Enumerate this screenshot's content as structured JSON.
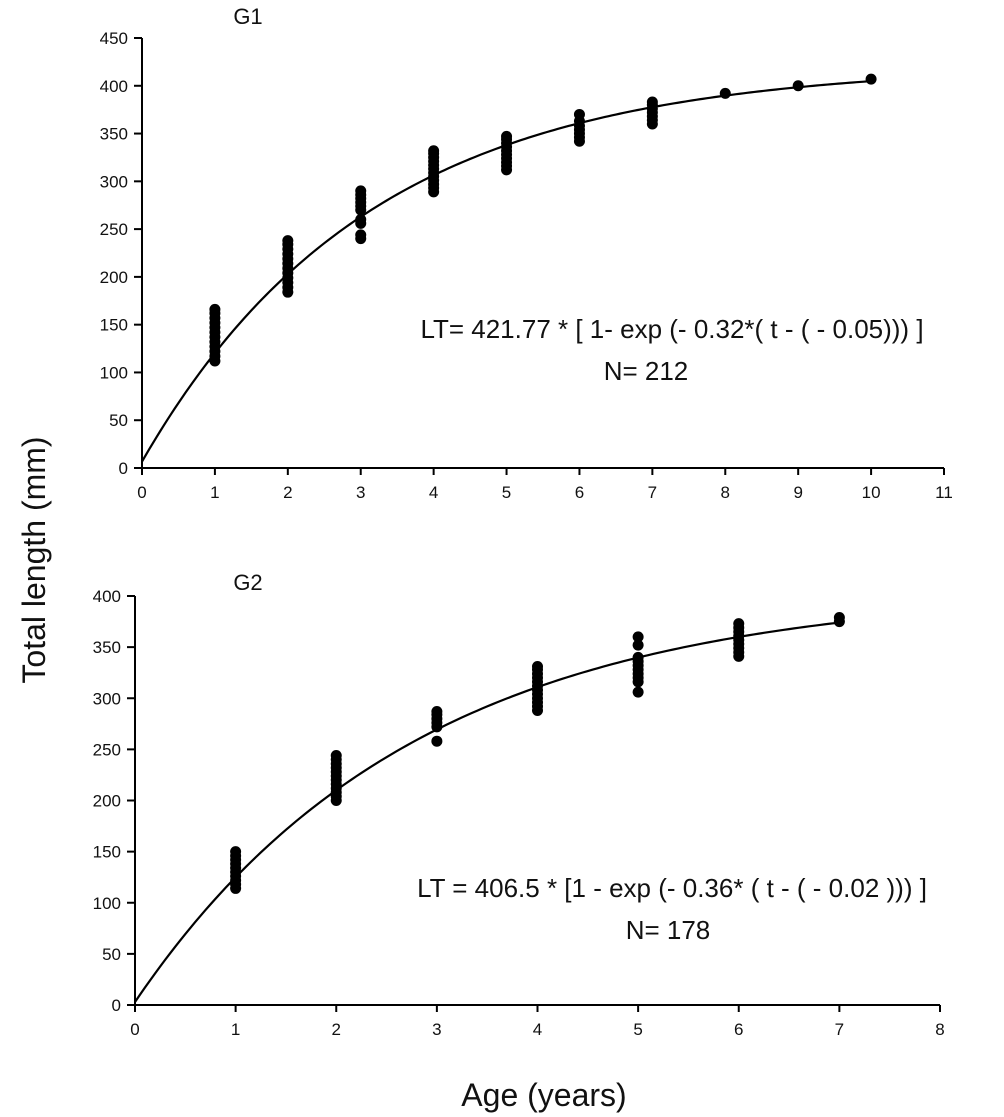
{
  "chart_data": {
    "shared": {
      "ylabel": "Total length (mm)",
      "xlabel": "Age (years)",
      "colors": {
        "ink": "#000000",
        "background": "#ffffff"
      }
    },
    "panels": [
      {
        "type": "scatter",
        "title": "G1",
        "xlim": [
          0,
          11
        ],
        "ylim": [
          0,
          450
        ],
        "xticks": [
          "0",
          "1",
          "2",
          "3",
          "4",
          "5",
          "6",
          "7",
          "8",
          "9",
          "10",
          "11"
        ],
        "yticks": [
          "0",
          "50",
          "100",
          "150",
          "200",
          "250",
          "300",
          "350",
          "400",
          "450"
        ],
        "equation": "LT= 421.77 * [ 1- exp (- 0.32*( t - ( - 0.05))) ]",
        "n_label": "N= 212",
        "fit": {
          "Linf": 421.77,
          "k": 0.32,
          "t0": -0.05,
          "t_max": 10
        },
        "points": [
          {
            "age": 1,
            "lengths": [
              112,
              117,
              122,
              127,
              132,
              137,
              142,
              147,
              152,
              157,
              162,
              166
            ]
          },
          {
            "age": 2,
            "lengths": [
              184,
              189,
              194,
              199,
              204,
              209,
              214,
              219,
              224,
              229,
              234,
              238
            ]
          },
          {
            "age": 3,
            "lengths": [
              240,
              244,
              256,
              260,
              270,
              274,
              278,
              282,
              286,
              290
            ]
          },
          {
            "age": 4,
            "lengths": [
              289,
              293,
              297,
              301,
              305,
              309,
              313,
              317,
              321,
              325,
              329,
              332
            ]
          },
          {
            "age": 5,
            "lengths": [
              312,
              316,
              320,
              324,
              328,
              332,
              336,
              340,
              344,
              347
            ]
          },
          {
            "age": 6,
            "lengths": [
              342,
              346,
              350,
              354,
              358,
              363,
              370
            ]
          },
          {
            "age": 7,
            "lengths": [
              360,
              364,
              368,
              372,
              376,
              380,
              383
            ]
          },
          {
            "age": 8,
            "lengths": [
              392
            ]
          },
          {
            "age": 9,
            "lengths": [
              400
            ]
          },
          {
            "age": 10,
            "lengths": [
              407
            ]
          }
        ]
      },
      {
        "type": "scatter",
        "title": "G2",
        "xlim": [
          0,
          8
        ],
        "ylim": [
          0,
          400
        ],
        "xticks": [
          "0",
          "1",
          "2",
          "3",
          "4",
          "5",
          "6",
          "7",
          "8"
        ],
        "yticks": [
          "0",
          "50",
          "100",
          "150",
          "200",
          "250",
          "300",
          "350",
          "400"
        ],
        "equation": "LT = 406.5 * [1 - exp (- 0.36* ( t - ( - 0.02 ))) ]",
        "n_label": "N= 178",
        "fit": {
          "Linf": 406.5,
          "k": 0.36,
          "t0": -0.02,
          "t_max": 7
        },
        "points": [
          {
            "age": 1,
            "lengths": [
              114,
              118,
              122,
              126,
              130,
              134,
              138,
              142,
              146,
              150
            ]
          },
          {
            "age": 2,
            "lengths": [
              200,
              204,
              208,
              212,
              216,
              220,
              224,
              228,
              232,
              236,
              240,
              244
            ]
          },
          {
            "age": 3,
            "lengths": [
              258,
              272,
              276,
              280,
              284,
              287
            ]
          },
          {
            "age": 4,
            "lengths": [
              288,
              292,
              296,
              300,
              304,
              308,
              312,
              316,
              320,
              324,
              328,
              331
            ]
          },
          {
            "age": 5,
            "lengths": [
              306,
              316,
              320,
              324,
              328,
              332,
              336,
              340,
              352,
              360
            ]
          },
          {
            "age": 6,
            "lengths": [
              341,
              345,
              349,
              353,
              357,
              361,
              365,
              369,
              373
            ]
          },
          {
            "age": 7,
            "lengths": [
              375,
              379
            ]
          }
        ]
      }
    ]
  }
}
